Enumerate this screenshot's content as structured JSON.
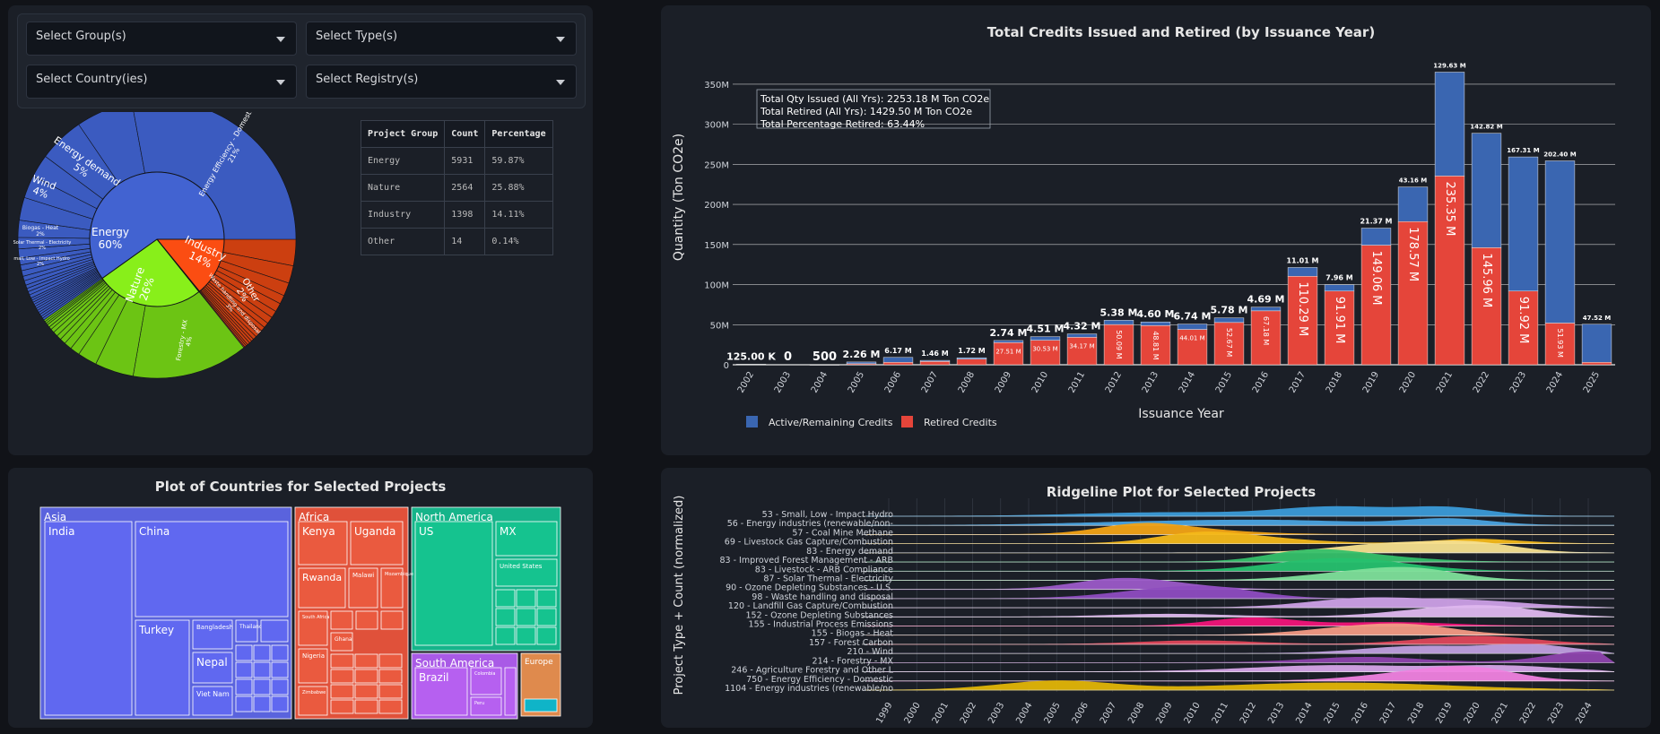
{
  "filters": {
    "group": "Select Group(s)",
    "type": "Select Type(s)",
    "country": "Select Country(ies)",
    "registry": "Select Registry(s)"
  },
  "summary_table": {
    "headers": [
      "Project Group",
      "Count",
      "Percentage"
    ],
    "rows": [
      [
        "Energy",
        "5931",
        "59.87%"
      ],
      [
        "Nature",
        "2564",
        "25.88%"
      ],
      [
        "Industry",
        "1398",
        "14.11%"
      ],
      [
        "Other",
        "14",
        "0.14%"
      ]
    ]
  },
  "sunburst": {
    "inner": [
      {
        "label": "Energy",
        "pct": "60%",
        "value": 59.87,
        "color": "#4263d1"
      },
      {
        "label": "Nature",
        "pct": "26%",
        "value": 25.88,
        "color": "#88ef1a"
      },
      {
        "label": "Industry",
        "pct": "14%",
        "value": 14.11,
        "color": "#fb4d12"
      },
      {
        "label": "Other",
        "pct": "",
        "value": 0.14,
        "color": "#d33c3c"
      }
    ],
    "outer_labels": [
      {
        "text": "Energy Efficiency - Domestic",
        "pct": "21%"
      },
      {
        "text": "Energy demand",
        "pct": "5%"
      },
      {
        "text": "Wind",
        "pct": "4%"
      },
      {
        "text": "Biogas - Heat",
        "pct": "2%"
      },
      {
        "text": "Solar Thermal - Electricity",
        "pct": "2%"
      },
      {
        "text": "Small, Low - Impact Hydro",
        "pct": "2%"
      },
      {
        "text": "Forestry - MX",
        "pct": "4%"
      },
      {
        "text": "Waste handling and disposal",
        "pct": "3%"
      },
      {
        "text": "Other",
        "pct": "2%"
      }
    ]
  },
  "chart_data": {
    "type": "bar",
    "title": "Total Credits Issued and Retired (by Issuance Year)",
    "xlabel": "Issuance Year",
    "ylabel": "Quantity (Ton CO2e)",
    "ylim": [
      0,
      370
    ],
    "yticks": [
      "0",
      "50M",
      "100M",
      "150M",
      "200M",
      "250M",
      "300M",
      "350M"
    ],
    "categories": [
      "2002",
      "2003",
      "2004",
      "2005",
      "2006",
      "2007",
      "2008",
      "2009",
      "2010",
      "2011",
      "2012",
      "2013",
      "2014",
      "2015",
      "2016",
      "2017",
      "2018",
      "2019",
      "2020",
      "2021",
      "2022",
      "2023",
      "2024",
      "2025"
    ],
    "series": [
      {
        "name": "Retired Credits",
        "color": "#e5453a",
        "values": [
          0.5,
          0,
          0,
          1.2,
          3,
          4,
          7,
          27.51,
          30.53,
          34.17,
          50.09,
          48.81,
          44.01,
          52.67,
          67.18,
          110.29,
          91.91,
          149.06,
          178.57,
          235.35,
          145.96,
          91.92,
          51.93,
          3
        ]
      },
      {
        "name": "Active/Remaining Credits",
        "color": "#3a66b1",
        "values": [
          0.125,
          0,
          0.0005,
          2.26,
          6.17,
          1.46,
          1.72,
          2.74,
          4.51,
          4.32,
          5.38,
          4.6,
          6.74,
          5.78,
          4.69,
          11.01,
          7.96,
          21.37,
          43.16,
          129.63,
          142.82,
          167.31,
          202.4,
          47.52
        ]
      }
    ],
    "top_labels": [
      "125.00 K",
      "0",
      "500",
      "2.26 M",
      "6.17 M",
      "1.46 M",
      "1.72 M",
      "2.74 M",
      "4.51 M",
      "4.32 M",
      "5.38 M",
      "4.60 M",
      "6.74 M",
      "5.78 M",
      "4.69 M",
      "11.01 M",
      "7.96 M",
      "21.37 M",
      "43.16 M",
      "129.63 M",
      "142.82 M",
      "167.31 M",
      "202.40 M",
      "47.52 M"
    ],
    "retired_labels": [
      "",
      "",
      "",
      "",
      "",
      "",
      "",
      "27.51 M",
      "30.53 M",
      "34.17 M",
      "50.09 M",
      "48.81 M",
      "44.01 M",
      "52.67 M",
      "67.18 M",
      "110.29 M",
      "91.91 M",
      "149.06 M",
      "178.57 M",
      "235.35 M",
      "145.96 M",
      "91.92 M",
      "51.93 M",
      ""
    ],
    "annotation": [
      "Total Qty Issued (All Yrs): 2253.18 M Ton CO2e",
      "Total Retired (All Yrs): 1429.50 M Ton CO2e",
      "Total Percentage Retired: 63.44%"
    ]
  },
  "treemap": {
    "title": "Plot of Countries for Selected Projects",
    "regions": [
      "Asia",
      "Africa",
      "North America",
      "South America",
      "Europe"
    ],
    "countries": [
      "India",
      "China",
      "Turkey",
      "Bangladesh",
      "Thailand",
      "Nepal",
      "Viet Nam",
      "Kenya",
      "Uganda",
      "Rwanda",
      "Malawi",
      "Mozambique",
      "South Africa",
      "Nigeria",
      "Zimbabwe",
      "Ghana",
      "US",
      "MX",
      "United States",
      "Brazil",
      "Colombia",
      "Peru"
    ]
  },
  "ridgeline": {
    "title": "Ridgeline Plot for Selected Projects",
    "ylabel": "Project Type + Count (normalized)",
    "labels": [
      "53 - Small, Low - Impact Hydro",
      "56 - Energy industries (renewable/non-",
      "57 - Coal Mine Methane",
      "69 - Livestock Gas Capture/Combustion",
      "83 - Energy demand",
      "83 - Improved Forest Management - ARB",
      "83 - Livestock - ARB Compliance",
      "87 - Solar Thermal - Electricity",
      "90 - Ozone Depleting Substances - U.S.",
      "98 - Waste handling and disposal",
      "120 - Landfill Gas Capture/Combustion",
      "152 - Ozone Depleting Substances",
      "155 - Industrial Process Emissions",
      "155 - Biogas - Heat",
      "157 - Forest Carbon",
      "210 - Wind",
      "214 - Forestry - MX",
      "246 - Agriculture Forestry and Other L",
      "750 - Energy Efficiency - Domestic",
      "1104 - Energy industries (renewable/no"
    ],
    "years": [
      "1999",
      "2000",
      "2001",
      "2002",
      "2003",
      "2004",
      "2005",
      "2006",
      "2007",
      "2008",
      "2009",
      "2010",
      "2011",
      "2012",
      "2013",
      "2014",
      "2015",
      "2016",
      "2017",
      "2018",
      "2019",
      "2020",
      "2021",
      "2022",
      "2023",
      "2024"
    ]
  }
}
